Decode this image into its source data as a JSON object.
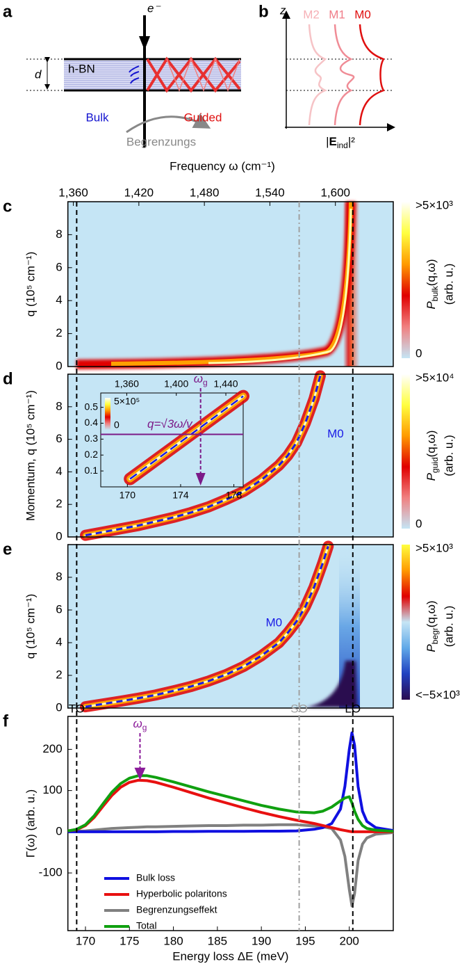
{
  "diagrams": {
    "a": {
      "label": "a",
      "electron": "e⁻",
      "thickness": "d",
      "material": "h-BN",
      "bulk": "Bulk",
      "guided": "Guided",
      "begrenzungs": "Begrenzungs"
    },
    "b": {
      "label": "b",
      "axis": "z",
      "modes": [
        "M2",
        "M1",
        "M0"
      ],
      "xlabel": [
        "|",
        "E",
        "ind",
        "|²"
      ]
    }
  },
  "chart_data": [
    {
      "type": "heatmap",
      "label": "c",
      "background": "#c5e5f5",
      "xlim": [
        168,
        205
      ],
      "x2label": "Frequency ω (cm⁻¹)",
      "x2lim": [
        1355,
        1653
      ],
      "x2ticks": [
        {
          "value": 1360,
          "label": "1,360"
        },
        {
          "value": 1420,
          "label": "1,420"
        },
        {
          "value": 1480,
          "label": "1,480"
        },
        {
          "value": 1540,
          "label": "1,540"
        },
        {
          "value": 1600,
          "label": "1,600"
        }
      ],
      "ylabel": "q (10⁵ cm⁻¹)",
      "ylim": [
        0,
        10
      ],
      "yticks": [
        0,
        2,
        4,
        6,
        8
      ],
      "colorbar": {
        "max_label": ">5×10³",
        "min_label": "0",
        "label": [
          "P",
          "bulk",
          "(q,ω)"
        ],
        "unit": "(arb. u.)",
        "colors": [
          "#c5e5f5",
          "#f08080",
          "#e00000",
          "#ff9a00",
          "#ffff40",
          "#ffffff"
        ]
      }
    },
    {
      "type": "heatmap",
      "label": "d",
      "background": "#c5e5f5",
      "xlim": [
        168,
        205
      ],
      "ylabel": "Momentum, q (10⁵ cm⁻¹)",
      "ylim": [
        0,
        10
      ],
      "yticks": [
        0,
        2,
        4,
        6,
        8
      ],
      "series": [
        {
          "name": "M0",
          "color": "#1a1ae6",
          "x": [
            170,
            172,
            174,
            176,
            178,
            180,
            182,
            184,
            186,
            188,
            190,
            192,
            193,
            194,
            195,
            196,
            196.7
          ],
          "values": [
            0.1,
            0.3,
            0.5,
            0.7,
            0.95,
            1.2,
            1.5,
            1.85,
            2.3,
            2.8,
            3.5,
            4.4,
            5.0,
            5.8,
            7.0,
            8.5,
            9.9
          ],
          "label_x": 197.5,
          "label_y": 6.3
        }
      ],
      "colorbar": {
        "max_label": ">5×10⁴",
        "min_label": "0",
        "label": [
          "P",
          "guid",
          "(q,ω)"
        ],
        "unit": "(arb. u.)",
        "colors": [
          "#c5e5f5",
          "#f08080",
          "#e00000",
          "#ff9a00",
          "#ffff40",
          "#ffffff"
        ]
      },
      "inset": {
        "xlim": [
          168,
          178.7
        ],
        "xticks": [
          170,
          174,
          178
        ],
        "x2lim": [
          1339,
          1454
        ],
        "x2ticks": [
          {
            "value": 1360,
            "label": "1,360"
          },
          {
            "value": 1400,
            "label": "1,400"
          },
          {
            "value": 1440,
            "label": "1,440"
          }
        ],
        "ylim": [
          0,
          0.59
        ],
        "yticks": [
          0.1,
          0.2,
          0.3,
          0.4,
          0.5
        ],
        "colorbar": {
          "max_label": "5×10⁵",
          "min_label": "0"
        },
        "line": {
          "label": "q=√3ω/v",
          "value": 0.33,
          "color": "#7b1a88"
        },
        "arrow": {
          "label": [
            "ω",
            "g"
          ],
          "x": 175.5
        },
        "band_x": [
          170.2,
          178.7
        ],
        "band_values": [
          0.05,
          0.57
        ]
      }
    },
    {
      "type": "heatmap",
      "label": "e",
      "background": "#c5e5f5",
      "xlim": [
        168,
        205
      ],
      "ylabel": "q (10⁵ cm⁻¹)",
      "ylim": [
        0,
        10
      ],
      "yticks": [
        0,
        2,
        4,
        6,
        8
      ],
      "series": [
        {
          "name": "M0",
          "color": "#1a1ae6",
          "x": [
            170,
            172,
            174,
            176,
            178,
            180,
            182,
            184,
            186,
            188,
            190,
            192,
            193,
            194,
            195,
            196,
            197,
            197.6
          ],
          "values": [
            0.08,
            0.25,
            0.42,
            0.6,
            0.8,
            1.05,
            1.32,
            1.65,
            2.05,
            2.55,
            3.2,
            4.0,
            4.6,
            5.3,
            6.2,
            7.4,
            8.9,
            9.9
          ],
          "label_x": 190.5,
          "label_y": 5.2
        }
      ],
      "colorbar": {
        "max_label": ">5×10³",
        "min_label": "<−5×10³",
        "label": [
          "P",
          "begr",
          "(q,ω)"
        ],
        "unit": "(arb. u.)",
        "colors": [
          "#2a0a50",
          "#2040c0",
          "#60a8e8",
          "#c5e5f5",
          "#e00000",
          "#ff9a00",
          "#ffff40"
        ]
      }
    },
    {
      "type": "line",
      "label": "f",
      "xlabel": "Energy loss ΔE (meV)",
      "ylabel": "Γ(ω) (arb. u.)",
      "xlim": [
        168,
        205
      ],
      "xticks": [
        170,
        175,
        180,
        185,
        190,
        195,
        200
      ],
      "ylim": [
        -240,
        280
      ],
      "yticks": [
        -100,
        0,
        100,
        200
      ],
      "legend": "lower left",
      "x": [
        168,
        169,
        170,
        171,
        172,
        173,
        174,
        175,
        176,
        177,
        178,
        180,
        182,
        184,
        186,
        188,
        190,
        192,
        194,
        196,
        197,
        198,
        199,
        199.5,
        200,
        200.3,
        200.6,
        201,
        201.5,
        202,
        203,
        205
      ],
      "series": [
        {
          "name": "Bulk loss",
          "color": "#1010e0",
          "values": [
            0,
            0,
            0,
            0,
            0,
            0,
            0,
            0,
            0,
            0,
            0,
            0.5,
            0.5,
            1,
            1,
            1,
            1.5,
            1.5,
            2,
            6,
            10,
            20,
            55,
            110,
            200,
            240,
            210,
            110,
            50,
            25,
            10,
            3
          ]
        },
        {
          "name": "Hyperbolic polaritons",
          "color": "#e81010",
          "values": [
            2,
            5,
            15,
            35,
            62,
            88,
            108,
            120,
            125,
            124,
            120,
            108,
            95,
            82,
            70,
            58,
            47,
            37,
            28,
            20,
            15,
            10,
            5,
            3,
            1,
            0,
            0,
            0,
            0,
            0,
            0,
            0
          ]
        },
        {
          "name": "Begrenzungseffekt",
          "color": "#808080",
          "values": [
            0,
            1,
            2,
            4,
            6,
            8,
            9,
            10,
            11,
            12,
            12,
            13,
            14,
            15,
            15,
            16,
            16,
            17,
            17,
            14,
            12,
            8,
            -20,
            -60,
            -140,
            -180,
            -150,
            -70,
            -30,
            -15,
            -6,
            -2
          ]
        },
        {
          "name": "Total",
          "color": "#10a010",
          "values": [
            2,
            6,
            17,
            39,
            68,
            96,
            117,
            130,
            136,
            136,
            132,
            121,
            109,
            97,
            86,
            75,
            64,
            55,
            48,
            46,
            50,
            60,
            75,
            82,
            85,
            70,
            50,
            30,
            15,
            8,
            4,
            1
          ]
        }
      ],
      "reference_lines": [
        {
          "label": "TO",
          "x": 169,
          "color": "#000000",
          "dash": "7 5"
        },
        {
          "label": "SO",
          "x": 194.3,
          "color": "#a0a0a0",
          "dash": "8 4 2 4"
        },
        {
          "label": "LO",
          "x": 200.4,
          "color": "#000000",
          "dash": "7 5"
        }
      ],
      "arrow": {
        "label": [
          "ω",
          "g"
        ],
        "x": 176.2,
        "value": 125,
        "color": "#8a1a99"
      }
    }
  ]
}
